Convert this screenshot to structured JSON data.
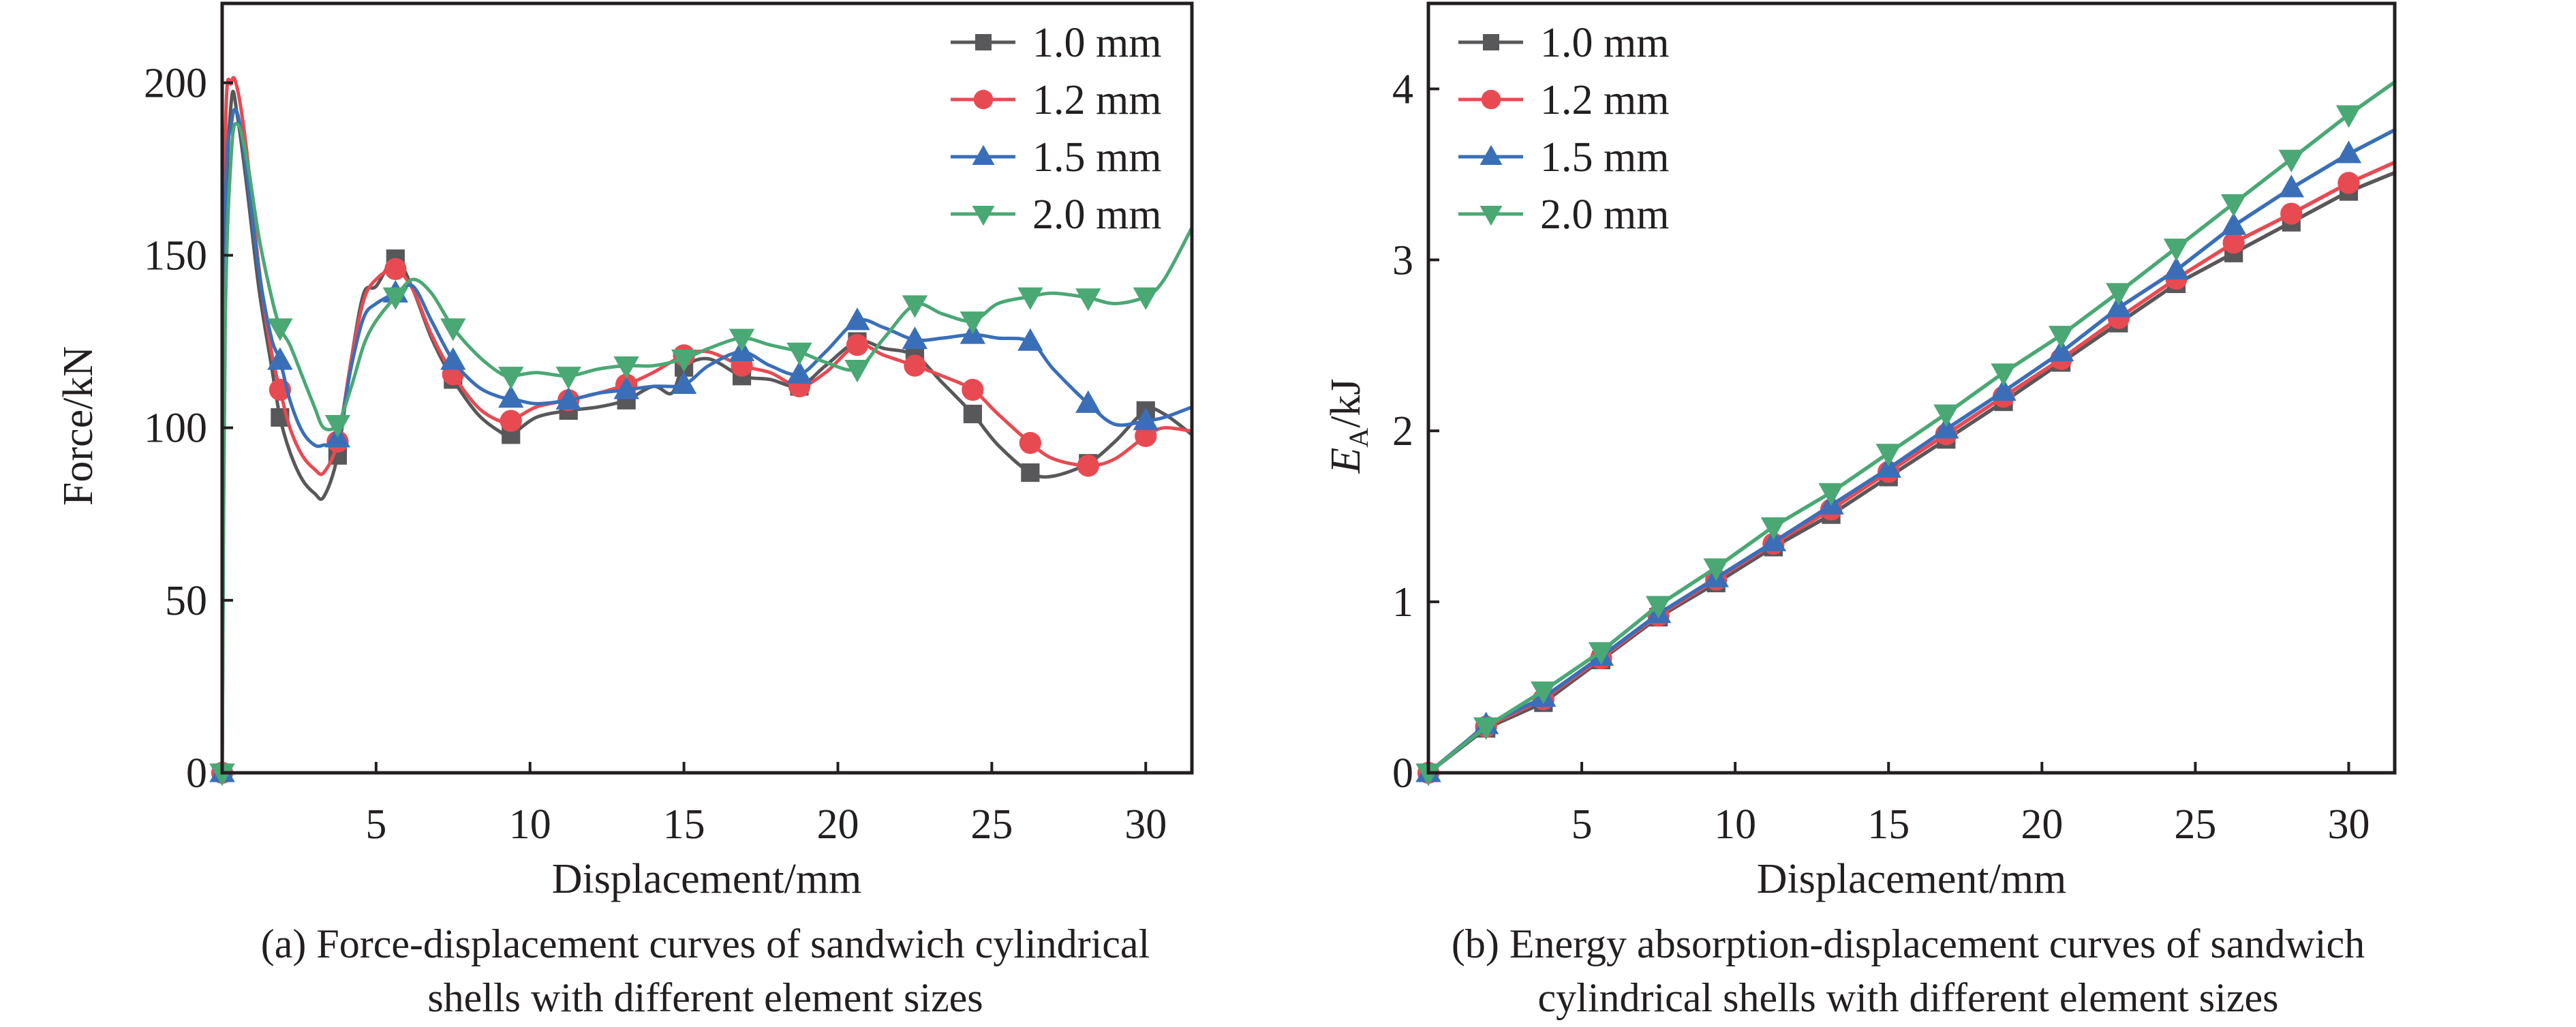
{
  "figure": {
    "captions": {
      "a": [
        "(a) Force-displacement curves of sandwich cylindrical",
        "shells with different element sizes"
      ],
      "b": [
        "(b) Energy absorption-displacement curves of sandwich",
        "cylindrical shells with different element sizes"
      ]
    }
  },
  "series_styles": [
    {
      "name": "1.0 mm",
      "color": "#58585a",
      "marker": "square"
    },
    {
      "name": "1.2 mm",
      "color": "#e84a52",
      "marker": "circle"
    },
    {
      "name": "1.5 mm",
      "color": "#3a6fb8",
      "marker": "triangle-up"
    },
    {
      "name": "2.0 mm",
      "color": "#4aa874",
      "marker": "triangle-down"
    }
  ],
  "chart_data": [
    {
      "id": "a",
      "type": "line",
      "title": "",
      "xlabel": "Displacement/mm",
      "ylabel": "Force/kN",
      "xlim": [
        0,
        31.5
      ],
      "ylim": [
        0,
        223
      ],
      "xticks": [
        5,
        10,
        15,
        20,
        25,
        30
      ],
      "yticks": [
        0,
        50,
        100,
        150,
        200
      ],
      "grid": false,
      "legend": {
        "position": "top-right",
        "entries": [
          "1.0 mm",
          "1.2 mm",
          "1.5 mm",
          "2.0 mm"
        ]
      },
      "marker_x": [
        0,
        1.88,
        3.75,
        5.63,
        7.5,
        9.38,
        11.25,
        13.13,
        15.0,
        16.88,
        18.75,
        20.63,
        22.5,
        24.38,
        26.25,
        28.13,
        30.0
      ],
      "series": [
        {
          "name": "1.0 mm",
          "x": [
            0,
            0.1,
            0.3,
            0.5,
            0.8,
            1.2,
            1.6,
            1.88,
            2.2,
            2.6,
            3.0,
            3.3,
            3.75,
            4.2,
            4.6,
            5.0,
            5.63,
            6.2,
            6.8,
            7.5,
            8.3,
            9.0,
            9.38,
            10.2,
            11.25,
            12.2,
            13.13,
            14.0,
            14.6,
            15.0,
            15.8,
            16.88,
            17.8,
            18.75,
            19.6,
            20.63,
            21.5,
            22.5,
            23.4,
            24.38,
            25.2,
            26.25,
            27.0,
            28.13,
            29.0,
            30.0,
            30.6,
            31.5
          ],
          "y": [
            0,
            150,
            195,
            190,
            170,
            140,
            118,
            103,
            93,
            85,
            81,
            80,
            92,
            120,
            139,
            141,
            149,
            140,
            126,
            114,
            104,
            99,
            98,
            103,
            105,
            106,
            108,
            112,
            110,
            117.5,
            120,
            115,
            114,
            112,
            118,
            125,
            123,
            121,
            113,
            104,
            95,
            87,
            86,
            89.7,
            96,
            105,
            104,
            98
          ]
        },
        {
          "name": "1.2 mm",
          "x": [
            0,
            0.1,
            0.3,
            0.5,
            0.8,
            1.2,
            1.6,
            1.88,
            2.2,
            2.6,
            3.0,
            3.3,
            3.75,
            4.2,
            4.6,
            5.0,
            5.63,
            6.2,
            6.8,
            7.5,
            8.3,
            9.0,
            9.38,
            10.2,
            11.25,
            12.2,
            13.13,
            14.0,
            15.0,
            15.8,
            16.88,
            17.8,
            18.75,
            19.6,
            20.63,
            21.5,
            22.5,
            23.4,
            24.38,
            25.2,
            26.25,
            27.0,
            28.13,
            29.0,
            30.0,
            30.6,
            31.5
          ],
          "y": [
            0,
            180,
            200,
            198,
            180,
            146,
            122,
            111,
            100,
            92,
            88,
            87,
            96,
            120,
            137,
            143,
            146,
            140,
            127,
            115.5,
            106,
            102,
            102,
            106,
            108,
            110,
            112.5,
            116,
            121,
            122,
            118,
            116,
            112,
            116,
            124,
            121,
            118,
            115,
            111,
            104,
            95.6,
            91,
            89,
            91,
            97.6,
            100,
            99
          ]
        },
        {
          "name": "1.5 mm",
          "x": [
            0,
            0.1,
            0.3,
            0.5,
            0.8,
            1.2,
            1.6,
            1.88,
            2.2,
            2.6,
            3.0,
            3.3,
            3.75,
            4.2,
            4.6,
            5.0,
            5.63,
            6.2,
            6.8,
            7.5,
            8.3,
            9.0,
            9.38,
            10.2,
            11.25,
            12.2,
            13.13,
            14.0,
            15.0,
            15.8,
            16.88,
            17.8,
            18.75,
            19.6,
            20.63,
            21.5,
            22.5,
            23.4,
            24.38,
            25.2,
            26.25,
            27.0,
            28.13,
            29.0,
            30.0,
            30.6,
            31.5
          ],
          "y": [
            0,
            160,
            188,
            191,
            174,
            145,
            126,
            119.5,
            108,
            99,
            95,
            95,
            97,
            118,
            132,
            136,
            139,
            141,
            131,
            119.5,
            112,
            109,
            108.5,
            107,
            108,
            110,
            111,
            112,
            112.5,
            118,
            122,
            118,
            115.5,
            122,
            131,
            129,
            125.5,
            126,
            127,
            126,
            125,
            117,
            107,
            101,
            102,
            103,
            106
          ]
        },
        {
          "name": "2.0 mm",
          "x": [
            0,
            0.1,
            0.3,
            0.5,
            0.8,
            1.2,
            1.6,
            1.88,
            2.2,
            2.6,
            3.0,
            3.3,
            3.75,
            4.2,
            4.6,
            5.0,
            5.63,
            6.2,
            6.8,
            7.5,
            8.3,
            9.0,
            9.38,
            10.2,
            11.25,
            12.2,
            13.13,
            14.0,
            15.0,
            15.8,
            16.88,
            17.8,
            18.75,
            19.6,
            20.63,
            21.5,
            22.5,
            23.4,
            24.38,
            25.2,
            26.25,
            27.0,
            28.13,
            29.0,
            30.0,
            30.6,
            31.5
          ],
          "y": [
            0,
            130,
            180,
            188,
            178,
            155,
            138,
            129,
            124,
            115,
            106,
            100,
            101,
            112,
            124,
            131,
            138,
            143,
            139,
            129,
            121,
            116,
            115,
            116,
            115,
            117,
            118,
            118,
            120,
            123,
            126,
            124,
            122,
            119,
            117,
            126,
            135.7,
            133,
            131,
            136,
            138,
            139,
            137.7,
            136,
            138,
            143,
            158
          ]
        }
      ]
    },
    {
      "id": "b",
      "type": "line",
      "title": "",
      "xlabel": "Displacement/mm",
      "ylabel": "E_A/kJ",
      "ylabel_main": "E",
      "ylabel_sub": "A",
      "ylabel_unit": "/kJ",
      "xlim": [
        0,
        31.5
      ],
      "ylim": [
        0,
        4.5
      ],
      "xticks": [
        5,
        10,
        15,
        20,
        25,
        30
      ],
      "yticks": [
        0,
        1,
        2,
        3,
        4
      ],
      "grid": false,
      "legend": {
        "position": "top-left",
        "entries": [
          "1.0 mm",
          "1.2 mm",
          "1.5 mm",
          "2.0 mm"
        ]
      },
      "series": [
        {
          "name": "1.0 mm",
          "x": [
            0,
            1.88,
            3.75,
            5.63,
            7.5,
            9.38,
            11.25,
            13.13,
            15.0,
            16.88,
            18.75,
            20.63,
            22.5,
            24.38,
            26.25,
            28.13,
            30.0,
            31.5
          ],
          "y": [
            0,
            0.26,
            0.41,
            0.66,
            0.91,
            1.11,
            1.32,
            1.51,
            1.73,
            1.95,
            2.17,
            2.4,
            2.63,
            2.86,
            3.04,
            3.22,
            3.4,
            3.51
          ]
        },
        {
          "name": "1.2 mm",
          "x": [
            0,
            1.88,
            3.75,
            5.63,
            7.5,
            9.38,
            11.25,
            13.13,
            15.0,
            16.88,
            18.75,
            20.63,
            22.5,
            24.38,
            26.25,
            28.13,
            30.0,
            31.5
          ],
          "y": [
            0,
            0.27,
            0.43,
            0.67,
            0.92,
            1.13,
            1.34,
            1.54,
            1.76,
            1.98,
            2.2,
            2.42,
            2.66,
            2.89,
            3.1,
            3.27,
            3.45,
            3.57
          ]
        },
        {
          "name": "1.5 mm",
          "x": [
            0,
            1.88,
            3.75,
            5.63,
            7.5,
            9.38,
            11.25,
            13.13,
            15.0,
            16.88,
            18.75,
            20.63,
            22.5,
            24.38,
            26.25,
            28.13,
            30.0,
            31.5
          ],
          "y": [
            0,
            0.28,
            0.44,
            0.68,
            0.93,
            1.14,
            1.35,
            1.565,
            1.78,
            2.01,
            2.23,
            2.46,
            2.72,
            2.94,
            3.2,
            3.42,
            3.62,
            3.76
          ]
        },
        {
          "name": "2.0 mm",
          "x": [
            0,
            1.88,
            3.75,
            5.63,
            7.5,
            9.38,
            11.25,
            13.13,
            15.0,
            16.88,
            18.75,
            20.63,
            22.5,
            24.38,
            26.25,
            28.13,
            30.0,
            31.5
          ],
          "y": [
            0,
            0.27,
            0.48,
            0.71,
            0.98,
            1.2,
            1.44,
            1.64,
            1.87,
            2.1,
            2.34,
            2.56,
            2.81,
            3.07,
            3.33,
            3.59,
            3.85,
            4.04
          ]
        }
      ]
    }
  ]
}
